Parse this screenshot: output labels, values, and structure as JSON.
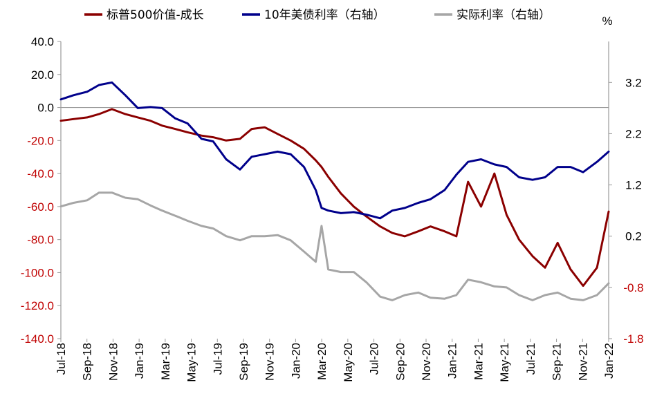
{
  "chart_data": {
    "type": "line",
    "x": [
      "2018-07-02",
      "2018-08-01",
      "2018-09-03",
      "2018-10-01",
      "2018-11-01",
      "2018-12-03",
      "2019-01-02",
      "2019-02-01",
      "2019-03-01",
      "2019-04-01",
      "2019-05-01",
      "2019-06-03",
      "2019-07-01",
      "2019-08-01",
      "2019-09-03",
      "2019-10-01",
      "2019-11-01",
      "2019-12-02",
      "2020-01-02",
      "2020-02-03",
      "2020-03-02",
      "2020-03-16",
      "2020-04-01",
      "2020-05-01",
      "2020-06-01",
      "2020-07-01",
      "2020-08-03",
      "2020-09-01",
      "2020-10-01",
      "2020-11-02",
      "2020-12-01",
      "2021-01-04",
      "2021-02-01",
      "2021-03-01",
      "2021-04-01",
      "2021-05-03",
      "2021-06-01",
      "2021-07-01",
      "2021-08-02",
      "2021-09-01",
      "2021-10-01",
      "2021-11-01",
      "2021-12-01",
      "2022-01-03",
      "2022-01-31"
    ],
    "x_tick_labels": [
      "Jul-18",
      "Sep-18",
      "Nov-18",
      "Jan-19",
      "Mar-19",
      "May-19",
      "Jul-19",
      "Sep-19",
      "Nov-19",
      "Jan-20",
      "Mar-20",
      "May-20",
      "Jul-20",
      "Sep-20",
      "Nov-20",
      "Jan-21",
      "Mar-21",
      "May-21",
      "Jul-21",
      "Sep-21",
      "Nov-21",
      "Jan-22"
    ],
    "y_left": {
      "ticks": [
        "40.0",
        "20.0",
        "0.0",
        "-20.0",
        "-40.0",
        "-60.0",
        "-80.0",
        "-100.0",
        "-120.0",
        "-140.0"
      ],
      "ylim": [
        -140,
        40
      ]
    },
    "y_right": {
      "unit": "%",
      "ticks": [
        "3.2",
        "2.2",
        "1.2",
        "0.2",
        "-0.8",
        "-1.8"
      ],
      "ylim": [
        -1.8,
        4.0
      ]
    },
    "series": [
      {
        "name": "标普500价值-成长",
        "axis": "left",
        "color": "#8B0000",
        "values": [
          -8,
          -7,
          -6,
          -4,
          -1,
          -4,
          -6,
          -8,
          -11,
          -13,
          -15,
          -17,
          -18,
          -20,
          -19,
          -13,
          -12,
          -16,
          -20,
          -25,
          -32,
          -36,
          -42,
          -52,
          -60,
          -66,
          -72,
          -76,
          -78,
          -75,
          -72,
          -75,
          -78,
          -45,
          -60,
          -40,
          -65,
          -80,
          -90,
          -97,
          -82,
          -98,
          -108,
          -97,
          -63
        ]
      },
      {
        "name": "10年美债利率（右轴）",
        "axis": "right",
        "color": "#00008B",
        "values": [
          2.87,
          2.95,
          3.02,
          3.15,
          3.2,
          2.95,
          2.7,
          2.72,
          2.7,
          2.5,
          2.4,
          2.1,
          2.05,
          1.7,
          1.5,
          1.75,
          1.8,
          1.85,
          1.8,
          1.55,
          1.1,
          0.75,
          0.7,
          0.65,
          0.67,
          0.62,
          0.55,
          0.7,
          0.75,
          0.85,
          0.92,
          1.1,
          1.4,
          1.65,
          1.7,
          1.6,
          1.55,
          1.35,
          1.3,
          1.35,
          1.55,
          1.55,
          1.45,
          1.65,
          1.85
        ]
      },
      {
        "name": "实际利率（右轴）",
        "axis": "right",
        "color": "#A6A6A6",
        "values": [
          0.78,
          0.85,
          0.9,
          1.05,
          1.05,
          0.95,
          0.92,
          0.8,
          0.7,
          0.6,
          0.5,
          0.4,
          0.35,
          0.2,
          0.12,
          0.2,
          0.2,
          0.22,
          0.12,
          -0.1,
          -0.3,
          0.4,
          -0.45,
          -0.5,
          -0.5,
          -0.7,
          -0.98,
          -1.05,
          -0.95,
          -0.9,
          -1.0,
          -1.02,
          -0.95,
          -0.65,
          -0.7,
          -0.78,
          -0.8,
          -0.95,
          -1.05,
          -0.95,
          -0.9,
          -1.02,
          -1.05,
          -0.95,
          -0.72
        ]
      }
    ],
    "legend_position": "top",
    "grid": false
  }
}
